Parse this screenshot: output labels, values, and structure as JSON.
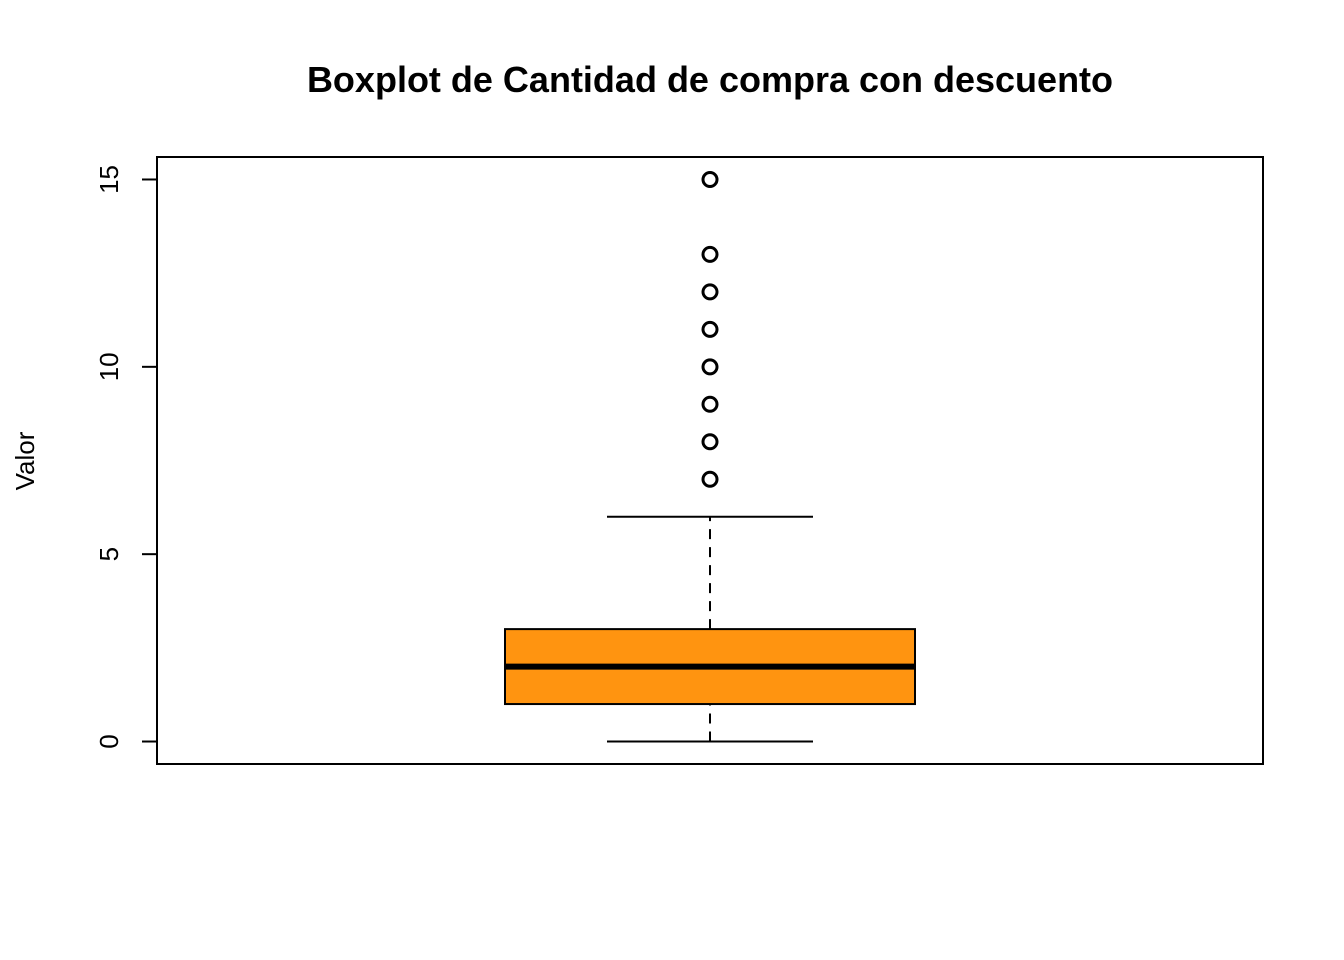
{
  "chart_data": {
    "type": "boxplot",
    "title": "Boxplot de Cantidad de compra con descuento",
    "xlabel": "",
    "ylabel": "Valor",
    "ylim": [
      -0.6,
      15.6
    ],
    "yticks": [
      0,
      5,
      10,
      15
    ],
    "ytick_labels": [
      "0",
      "5",
      "10",
      "15"
    ],
    "grid": false,
    "box": {
      "whisker_low": 0,
      "q1": 1,
      "median": 2,
      "q3": 3,
      "whisker_high": 6,
      "outliers": [
        7,
        8,
        9,
        10,
        11,
        12,
        13,
        15
      ]
    },
    "box_color": "#FF9410",
    "line_color": "#000000"
  }
}
